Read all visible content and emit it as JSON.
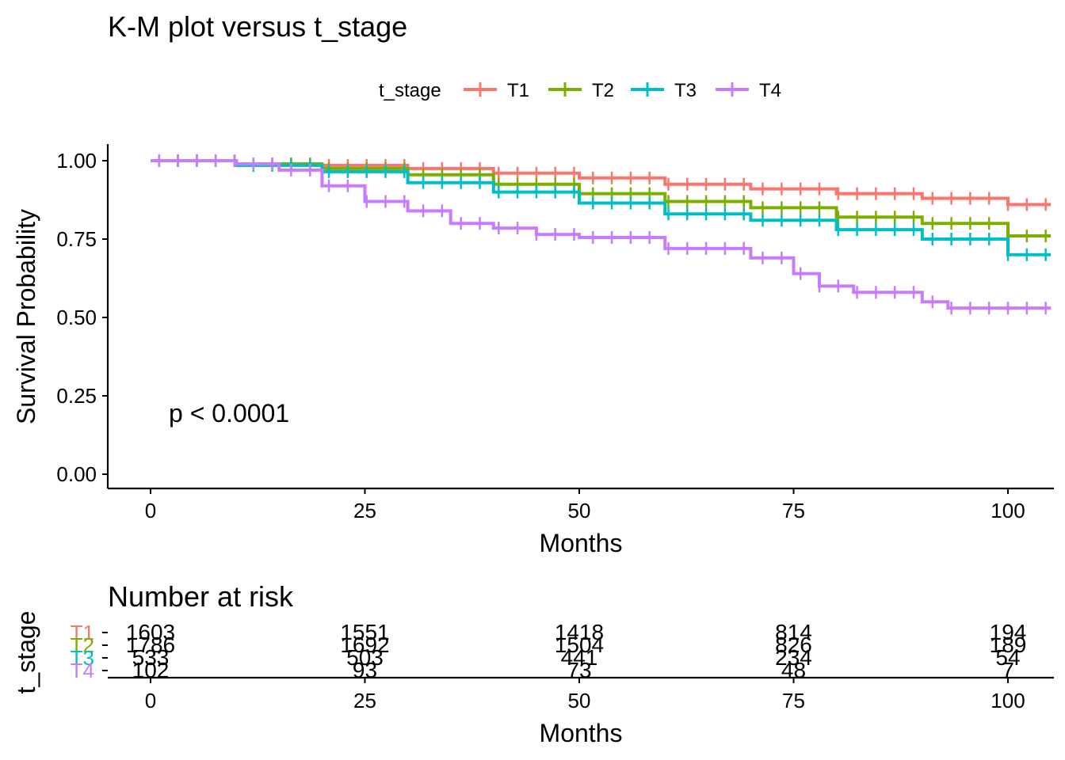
{
  "chart_data": [
    {
      "type": "line",
      "title": "K-M plot versus t_stage",
      "xlabel": "Months",
      "ylabel": "Survival Probability",
      "xlim": [
        -5,
        105
      ],
      "ylim": [
        -0.04,
        1.04
      ],
      "xticks": [
        "0",
        "25",
        "50",
        "75",
        "100"
      ],
      "yticks": [
        "0.00",
        "0.25",
        "0.50",
        "0.75",
        "1.00"
      ],
      "grid": false,
      "annotation": "p < 0.0001",
      "legend": {
        "title": "t_stage",
        "position": "top"
      },
      "series": [
        {
          "name": "T1",
          "color": "#F8766D",
          "x": [
            0,
            10,
            20,
            30,
            40,
            50,
            60,
            70,
            80,
            90,
            100,
            105
          ],
          "y": [
            1.0,
            0.99,
            0.985,
            0.975,
            0.96,
            0.945,
            0.925,
            0.91,
            0.895,
            0.88,
            0.86,
            0.86
          ]
        },
        {
          "name": "T2",
          "color": "#7CAE00",
          "x": [
            0,
            10,
            20,
            30,
            40,
            50,
            60,
            70,
            80,
            90,
            100,
            105
          ],
          "y": [
            1.0,
            0.99,
            0.975,
            0.955,
            0.925,
            0.895,
            0.87,
            0.85,
            0.82,
            0.8,
            0.76,
            0.76
          ]
        },
        {
          "name": "T3",
          "color": "#00BFC4",
          "x": [
            0,
            10,
            20,
            30,
            40,
            50,
            60,
            70,
            80,
            90,
            100,
            105
          ],
          "y": [
            1.0,
            0.985,
            0.965,
            0.93,
            0.9,
            0.865,
            0.83,
            0.81,
            0.78,
            0.75,
            0.7,
            0.7
          ]
        },
        {
          "name": "T4",
          "color": "#C77CFF",
          "x": [
            0,
            10,
            15,
            20,
            25,
            30,
            35,
            40,
            45,
            50,
            60,
            70,
            75,
            78,
            82,
            90,
            93,
            100,
            105
          ],
          "y": [
            1.0,
            0.99,
            0.97,
            0.92,
            0.87,
            0.84,
            0.8,
            0.785,
            0.765,
            0.755,
            0.72,
            0.69,
            0.64,
            0.6,
            0.58,
            0.55,
            0.53,
            0.53,
            0.53
          ]
        }
      ]
    },
    {
      "type": "table",
      "title": "Number at risk",
      "xlabel": "Months",
      "ylabel": "t_stage",
      "xticks": [
        "0",
        "25",
        "50",
        "75",
        "100"
      ],
      "x": [
        0,
        25,
        50,
        75,
        100
      ],
      "rows": [
        {
          "name": "T1",
          "color": "#F8766D",
          "values": [
            "1603",
            "1551",
            "1418",
            "814",
            "194"
          ]
        },
        {
          "name": "T2",
          "color": "#7CAE00",
          "values": [
            "1786",
            "1692",
            "1504",
            "826",
            "189"
          ]
        },
        {
          "name": "T3",
          "color": "#00BFC4",
          "values": [
            "533",
            "503",
            "441",
            "234",
            "54"
          ]
        },
        {
          "name": "T4",
          "color": "#C77CFF",
          "values": [
            "102",
            "93",
            "73",
            "48",
            "7"
          ]
        }
      ]
    }
  ]
}
